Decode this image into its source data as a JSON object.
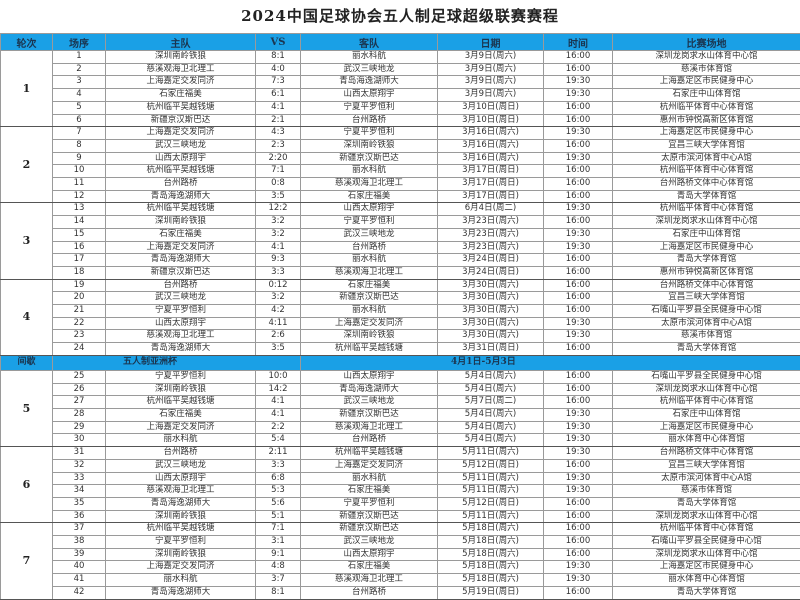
{
  "title": "2024中国足球协会五人制足球超级联赛赛程",
  "headers": [
    "轮次",
    "场序",
    "主队",
    "VS",
    "客队",
    "日期",
    "时间",
    "比赛场地"
  ],
  "break_row": {
    "label": "间歇",
    "event": "五人制亚洲杯",
    "dates": "4月1日-5月3日"
  },
  "colors": {
    "header_bg": "#1aa0e6"
  },
  "rounds": [
    {
      "round": "1",
      "matches": [
        [
          "1",
          "深圳南岭铁狼",
          "8:1",
          "丽水科航",
          "3月9日(周六)",
          "16:00",
          "深圳龙岗求水山体育中心馆"
        ],
        [
          "2",
          "慈溪观海卫北理工",
          "4:0",
          "武汉三峡地龙",
          "3月9日(周六)",
          "16:00",
          "慈溪市体育馆"
        ],
        [
          "3",
          "上海嘉定交发同济",
          "7:3",
          "青岛海逸湖师大",
          "3月9日(周六)",
          "19:30",
          "上海嘉定区市民健身中心"
        ],
        [
          "4",
          "石家庄福美",
          "6:1",
          "山西太原翔宇",
          "3月9日(周六)",
          "19:30",
          "石家庄中山体育馆"
        ],
        [
          "5",
          "杭州临平吴越钱塘",
          "4:1",
          "宁夏平罗恒利",
          "3月10日(周日)",
          "16:00",
          "杭州临平体育中心体育馆"
        ],
        [
          "6",
          "新疆京汉斯巴达",
          "2:1",
          "台州路桥",
          "3月10日(周日)",
          "16:00",
          "惠州市钟悦高新区体育馆"
        ]
      ]
    },
    {
      "round": "2",
      "matches": [
        [
          "7",
          "上海嘉定交发同济",
          "4:3",
          "宁夏平罗恒利",
          "3月16日(周六)",
          "19:30",
          "上海嘉定区市民健身中心"
        ],
        [
          "8",
          "武汉三峡地龙",
          "2:3",
          "深圳南岭铁狼",
          "3月16日(周六)",
          "16:00",
          "宜昌三峡大学体育馆"
        ],
        [
          "9",
          "山西太原翔宇",
          "2:20",
          "新疆京汉斯巴达",
          "3月16日(周六)",
          "19:30",
          "太原市滨河体育中心A馆"
        ],
        [
          "10",
          "杭州临平吴越钱塘",
          "7:1",
          "丽水科航",
          "3月17日(周日)",
          "16:00",
          "杭州临平体育中心体育馆"
        ],
        [
          "11",
          "台州路桥",
          "0:8",
          "慈溪观海卫北理工",
          "3月17日(周日)",
          "16:00",
          "台州路桥文体中心体育馆"
        ],
        [
          "12",
          "青岛海逸湖师大",
          "3:5",
          "石家庄福美",
          "3月17日(周日)",
          "16:00",
          "青岛大学体育馆"
        ]
      ]
    },
    {
      "round": "3",
      "matches": [
        [
          "13",
          "杭州临平吴越钱塘",
          "12:2",
          "山西太原翔宇",
          "6月4日(周二)",
          "19:30",
          "杭州临平体育中心体育馆"
        ],
        [
          "14",
          "深圳南岭铁狼",
          "3:2",
          "宁夏平罗恒利",
          "3月23日(周六)",
          "16:00",
          "深圳龙岗求水山体育中心馆"
        ],
        [
          "15",
          "石家庄福美",
          "3:2",
          "武汉三峡地龙",
          "3月23日(周六)",
          "19:30",
          "石家庄中山体育馆"
        ],
        [
          "16",
          "上海嘉定交发同济",
          "4:1",
          "台州路桥",
          "3月23日(周六)",
          "19:30",
          "上海嘉定区市民健身中心"
        ],
        [
          "17",
          "青岛海逸湖师大",
          "9:3",
          "丽水科航",
          "3月24日(周日)",
          "16:00",
          "青岛大学体育馆"
        ],
        [
          "18",
          "新疆京汉斯巴达",
          "3:3",
          "慈溪观海卫北理工",
          "3月24日(周日)",
          "16:00",
          "惠州市钟悦高新区体育馆"
        ]
      ]
    },
    {
      "round": "4",
      "matches": [
        [
          "19",
          "台州路桥",
          "0:12",
          "石家庄福美",
          "3月30日(周六)",
          "16:00",
          "台州路桥文体中心体育馆"
        ],
        [
          "20",
          "武汉三峡地龙",
          "3:2",
          "新疆京汉斯巴达",
          "3月30日(周六)",
          "16:00",
          "宜昌三峡大学体育馆"
        ],
        [
          "21",
          "宁夏平罗恒利",
          "4:2",
          "丽水科航",
          "3月30日(周六)",
          "16:00",
          "石嘴山平罗县全民健身中心馆"
        ],
        [
          "22",
          "山西太原翔宇",
          "4:11",
          "上海嘉定交发同济",
          "3月30日(周六)",
          "19:30",
          "太原市滨河体育中心A馆"
        ],
        [
          "23",
          "慈溪观海卫北理工",
          "2:6",
          "深圳南岭铁狼",
          "3月30日(周六)",
          "19:30",
          "慈溪市体育馆"
        ],
        [
          "24",
          "青岛海逸湖师大",
          "3:5",
          "杭州临平吴越钱塘",
          "3月31日(周日)",
          "16:00",
          "青岛大学体育馆"
        ]
      ]
    },
    {
      "round": "5",
      "matches": [
        [
          "25",
          "宁夏平罗恒利",
          "10:0",
          "山西太原翔宇",
          "5月4日(周六)",
          "16:00",
          "石嘴山平罗县全民健身中心馆"
        ],
        [
          "26",
          "深圳南岭铁狼",
          "14:2",
          "青岛海逸湖师大",
          "5月4日(周六)",
          "16:00",
          "深圳龙岗求水山体育中心馆"
        ],
        [
          "27",
          "杭州临平吴越钱塘",
          "4:1",
          "武汉三峡地龙",
          "5月7日(周二)",
          "16:00",
          "杭州临平体育中心体育馆"
        ],
        [
          "28",
          "石家庄福美",
          "4:1",
          "新疆京汉斯巴达",
          "5月4日(周六)",
          "19:30",
          "石家庄中山体育馆"
        ],
        [
          "29",
          "上海嘉定交发同济",
          "2:2",
          "慈溪观海卫北理工",
          "5月4日(周六)",
          "19:30",
          "上海嘉定区市民健身中心"
        ],
        [
          "30",
          "丽水科航",
          "5:4",
          "台州路桥",
          "5月4日(周六)",
          "19:30",
          "丽水体育中心体育馆"
        ]
      ]
    },
    {
      "round": "6",
      "matches": [
        [
          "31",
          "台州路桥",
          "2:11",
          "杭州临平吴越钱塘",
          "5月11日(周六)",
          "19:30",
          "台州路桥文体中心体育馆"
        ],
        [
          "32",
          "武汉三峡地龙",
          "3:3",
          "上海嘉定交发同济",
          "5月12日(周日)",
          "16:00",
          "宜昌三峡大学体育馆"
        ],
        [
          "33",
          "山西太原翔宇",
          "6:8",
          "丽水科航",
          "5月11日(周六)",
          "19:30",
          "太原市滨河体育中心A馆"
        ],
        [
          "34",
          "慈溪观海卫北理工",
          "5:3",
          "石家庄福美",
          "5月11日(周六)",
          "19:30",
          "慈溪市体育馆"
        ],
        [
          "35",
          "青岛海逸湖师大",
          "5:6",
          "宁夏平罗恒利",
          "5月12日(周日)",
          "16:00",
          "青岛大学体育馆"
        ],
        [
          "36",
          "深圳南岭铁狼",
          "5:1",
          "新疆京汉斯巴达",
          "5月11日(周六)",
          "16:00",
          "深圳龙岗求水山体育中心馆"
        ]
      ]
    },
    {
      "round": "7",
      "matches": [
        [
          "37",
          "杭州临平吴越钱塘",
          "7:1",
          "新疆京汉斯巴达",
          "5月18日(周六)",
          "16:00",
          "杭州临平体育中心体育馆"
        ],
        [
          "38",
          "宁夏平罗恒利",
          "3:1",
          "武汉三峡地龙",
          "5月18日(周六)",
          "16:00",
          "石嘴山平罗县全民健身中心馆"
        ],
        [
          "39",
          "深圳南岭铁狼",
          "9:1",
          "山西太原翔宇",
          "5月18日(周六)",
          "16:00",
          "深圳龙岗求水山体育中心馆"
        ],
        [
          "40",
          "上海嘉定交发同济",
          "4:8",
          "石家庄福美",
          "5月18日(周六)",
          "19:30",
          "上海嘉定区市民健身中心"
        ],
        [
          "41",
          "丽水科航",
          "3:7",
          "慈溪观海卫北理工",
          "5月18日(周六)",
          "19:30",
          "丽水体育中心体育馆"
        ],
        [
          "42",
          "青岛海逸湖师大",
          "8:1",
          "台州路桥",
          "5月19日(周日)",
          "16:00",
          "青岛大学体育馆"
        ]
      ]
    }
  ]
}
